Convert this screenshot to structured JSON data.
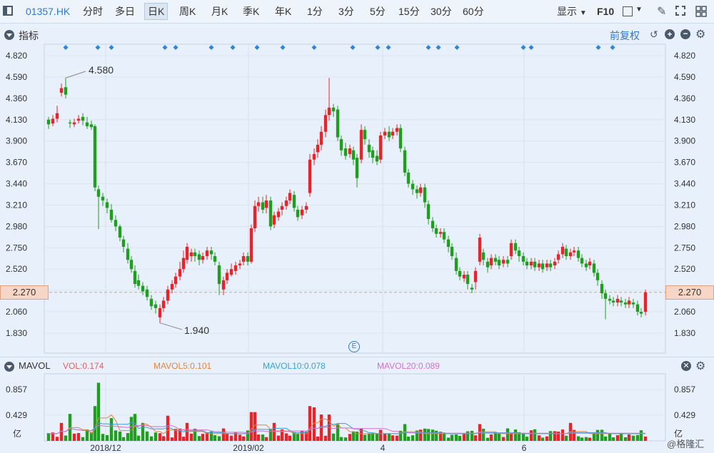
{
  "toolbar": {
    "ticker": "01357.HK",
    "periods": [
      "分时",
      "多日",
      "日K",
      "周K",
      "月K",
      "季K",
      "年K",
      "1分",
      "3分",
      "5分",
      "15分",
      "30分",
      "60分"
    ],
    "active_period": "日K",
    "display_label": "显示",
    "f10_label": "F10"
  },
  "main": {
    "section_title": "指标",
    "adjust_label": "前复权",
    "y_ticks": [
      "4.820",
      "4.590",
      "4.360",
      "4.130",
      "3.900",
      "3.670",
      "3.440",
      "3.210",
      "2.980",
      "2.750",
      "2.520",
      "2.290",
      "2.060",
      "1.830"
    ],
    "current_price": "2.270",
    "high_annotation": "4.580",
    "low_annotation": "1.940",
    "event_marker": "E"
  },
  "volume": {
    "section_title": "MAVOL",
    "indicators": [
      {
        "label": "VOL:",
        "value": "0.174",
        "color": "#e06060"
      },
      {
        "label": "MAVOL5:",
        "value": "0.101",
        "color": "#e8843a"
      },
      {
        "label": "MAVOL10:",
        "value": "0.078",
        "color": "#3aa0d8"
      },
      {
        "label": "MAVOL20:",
        "value": "0.089",
        "color": "#d070d0"
      }
    ],
    "y_ticks": [
      "0.857",
      "0.429"
    ],
    "unit": "亿"
  },
  "x_axis": {
    "labels": [
      "2018/12",
      "2019/02",
      "4",
      "6"
    ]
  },
  "watermark": "@格隆汇"
}
